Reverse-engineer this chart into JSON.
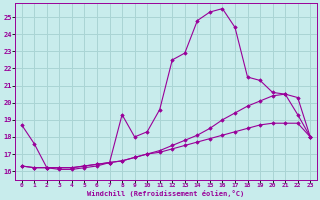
{
  "xlabel": "Windchill (Refroidissement éolien,°C)",
  "background_color": "#c8ecec",
  "grid_color": "#aad4d4",
  "line_color": "#990099",
  "x_ticks": [
    0,
    1,
    2,
    3,
    4,
    5,
    6,
    7,
    8,
    9,
    10,
    11,
    12,
    13,
    14,
    15,
    16,
    17,
    18,
    19,
    20,
    21,
    22,
    23
  ],
  "ylim": [
    15.5,
    25.8
  ],
  "xlim": [
    -0.5,
    23.5
  ],
  "y_ticks": [
    16,
    17,
    18,
    19,
    20,
    21,
    22,
    23,
    24,
    25
  ],
  "curve1_x": [
    0,
    1,
    2,
    3,
    4,
    5,
    6,
    7,
    8,
    9,
    10,
    11,
    12,
    13,
    14,
    15,
    16,
    17,
    18,
    19,
    20,
    21,
    22,
    23
  ],
  "curve1_y": [
    18.7,
    17.6,
    16.2,
    16.1,
    16.1,
    16.2,
    16.3,
    16.5,
    19.3,
    18.0,
    18.3,
    19.6,
    22.5,
    22.9,
    24.8,
    25.3,
    25.5,
    24.4,
    21.5,
    21.3,
    20.6,
    20.5,
    19.3,
    18.0
  ],
  "curve2_x": [
    0,
    1,
    2,
    3,
    4,
    5,
    6,
    7,
    8,
    9,
    10,
    11,
    12,
    13,
    14,
    15,
    16,
    17,
    18,
    19,
    20,
    21,
    22,
    23
  ],
  "curve2_y": [
    16.3,
    16.2,
    16.2,
    16.2,
    16.2,
    16.3,
    16.4,
    16.5,
    16.6,
    16.8,
    17.0,
    17.2,
    17.5,
    17.8,
    18.1,
    18.5,
    19.0,
    19.4,
    19.8,
    20.1,
    20.4,
    20.5,
    20.3,
    18.0
  ],
  "curve3_x": [
    0,
    1,
    2,
    3,
    4,
    5,
    6,
    7,
    8,
    9,
    10,
    11,
    12,
    13,
    14,
    15,
    16,
    17,
    18,
    19,
    20,
    21,
    22,
    23
  ],
  "curve3_y": [
    16.3,
    16.2,
    16.2,
    16.2,
    16.2,
    16.3,
    16.4,
    16.5,
    16.6,
    16.8,
    17.0,
    17.1,
    17.3,
    17.5,
    17.7,
    17.9,
    18.1,
    18.3,
    18.5,
    18.7,
    18.8,
    18.8,
    18.8,
    18.0
  ]
}
